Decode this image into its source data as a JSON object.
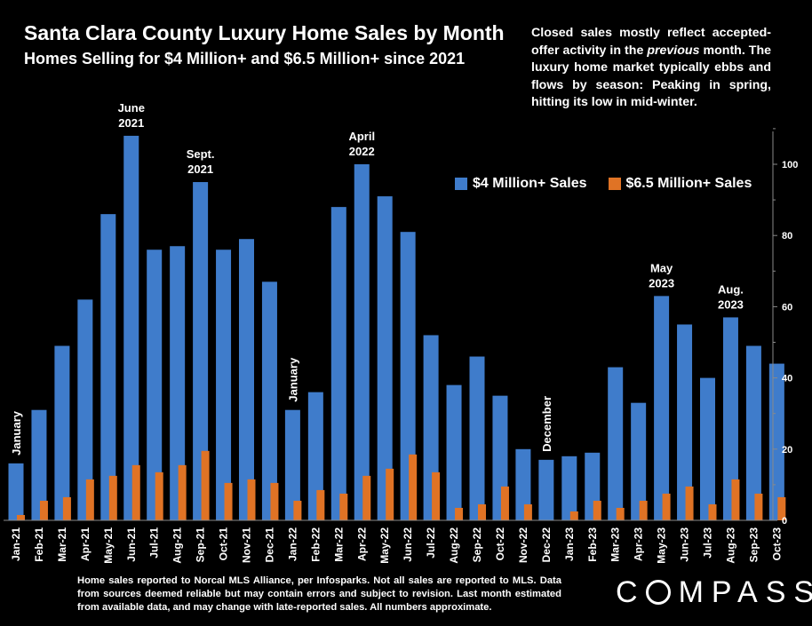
{
  "header": {
    "title": "Santa Clara County Luxury Home Sales by Month",
    "subtitle": "Homes Selling for $4 Million+ and $6.5 Million+ since 2021"
  },
  "note": {
    "part1": "Closed sales mostly reflect accepted-offer activity in the ",
    "emph": "previous",
    "part2": " month. The luxury home market typically ebbs and flows by season: Peaking in spring, hitting its low in mid-winter."
  },
  "footer": {
    "text": "Home sales reported to Norcal MLS Alliance, per Infosparks. Not all sales are reported to MLS. Data from sources deemed reliable but may contain errors and subject to revision.  Last month estimated from available data, and may change with late-reported sales. All numbers approximate."
  },
  "logo": {
    "before": "C",
    "after": "MPASS"
  },
  "colors": {
    "series1": "#3f7ccb",
    "series2": "#e07325",
    "background": "#000000",
    "text": "#ffffff"
  },
  "chart_data": {
    "type": "bar",
    "categories": [
      "Jan-21",
      "Feb-21",
      "Mar-21",
      "Apr-21",
      "May-21",
      "Jun-21",
      "Jul-21",
      "Aug-21",
      "Sep-21",
      "Oct-21",
      "Nov-21",
      "Dec-21",
      "Jan-22",
      "Feb-22",
      "Mar-22",
      "Apr-22",
      "May-22",
      "Jun-22",
      "Jul-22",
      "Aug-22",
      "Sep-22",
      "Oct-22",
      "Nov-22",
      "Dec-22",
      "Jan-23",
      "Feb-23",
      "Mar-23",
      "Apr-23",
      "May-23",
      "Jun-23",
      "Jul-23",
      "Aug-23",
      "Sep-23",
      "Oct-23"
    ],
    "series": [
      {
        "name": "$4 Million+ Sales",
        "values": [
          16,
          31,
          49,
          62,
          86,
          108,
          76,
          77,
          95,
          76,
          79,
          67,
          31,
          36,
          88,
          100,
          91,
          81,
          52,
          38,
          46,
          35,
          20,
          17,
          18,
          19,
          43,
          33,
          63,
          55,
          40,
          57,
          49,
          44
        ]
      },
      {
        "name": "$6.5 Million+ Sales",
        "values": [
          1.5,
          5.5,
          6.5,
          11.5,
          12.5,
          15.5,
          13.5,
          15.5,
          19.5,
          10.5,
          11.5,
          10.5,
          5.5,
          8.5,
          7.5,
          12.5,
          14.5,
          18.5,
          13.5,
          3.5,
          4.5,
          9.5,
          4.5,
          0,
          2.5,
          5.5,
          3.5,
          5.5,
          7.5,
          9.5,
          4.5,
          11.5,
          7.5,
          6.5
        ]
      }
    ],
    "ylim": [
      0,
      110
    ],
    "yticks": [
      0,
      20,
      40,
      60,
      80,
      100
    ],
    "axis_position": "right",
    "legend_position": "top-right",
    "grid": false,
    "annotations": [
      {
        "index": 0,
        "lines": [
          "January"
        ],
        "vertical": true
      },
      {
        "index": 5,
        "lines": [
          "June",
          "2021"
        ],
        "vertical": false
      },
      {
        "index": 8,
        "lines": [
          "Sept.",
          "2021"
        ],
        "vertical": false
      },
      {
        "index": 12,
        "lines": [
          "January"
        ],
        "vertical": true
      },
      {
        "index": 15,
        "lines": [
          "April",
          "2022"
        ],
        "vertical": false
      },
      {
        "index": 23,
        "lines": [
          "December"
        ],
        "vertical": true
      },
      {
        "index": 28,
        "lines": [
          "May",
          "2023"
        ],
        "vertical": false
      },
      {
        "index": 31,
        "lines": [
          "Aug.",
          "2023"
        ],
        "vertical": false
      }
    ]
  }
}
